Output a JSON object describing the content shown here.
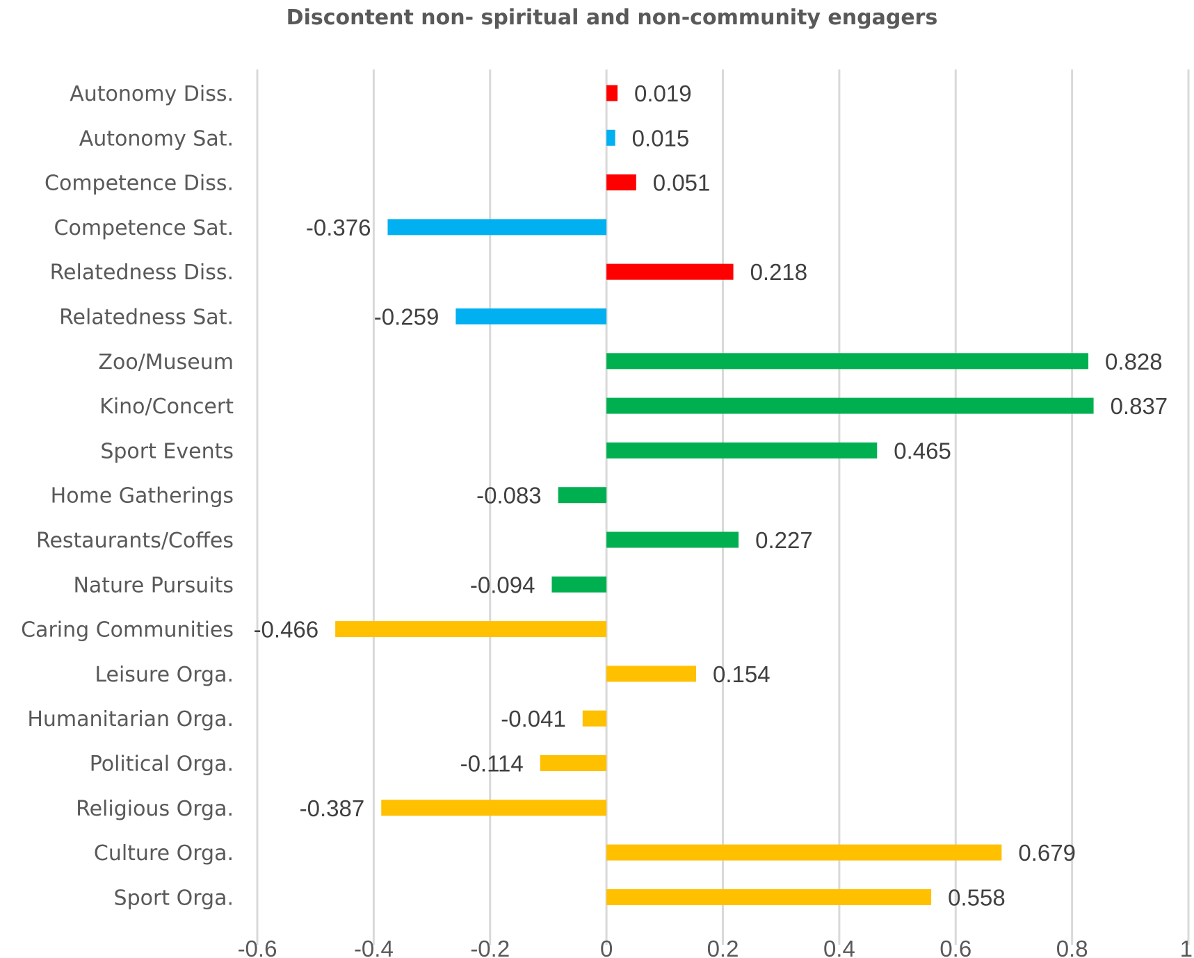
{
  "chart_data": {
    "type": "bar",
    "orientation": "horizontal",
    "title": "Discontent non- spiritual and non-community engagers",
    "xlabel": "",
    "ylabel": "",
    "xlim": [
      -0.6,
      1.0
    ],
    "x_ticks": [
      -0.6,
      -0.4,
      -0.2,
      0,
      0.2,
      0.4,
      0.6,
      0.8,
      1
    ],
    "x_tick_labels": [
      "-0.6",
      "-0.4",
      "-0.2",
      "0",
      "0.2",
      "0.4",
      "0.6",
      "0.8",
      "1"
    ],
    "grid": "vertical",
    "legend": "none",
    "colors": {
      "dissatisfaction": "#ff0000",
      "satisfaction": "#00b0f0",
      "leisure": "#00b050",
      "organization": "#ffc000"
    },
    "categories": [
      "Autonomy Diss.",
      "Autonomy Sat.",
      "Competence Diss.",
      "Competence Sat.",
      "Relatedness Diss.",
      "Relatedness Sat. ",
      "Zoo/Museum",
      "Kino/Concert",
      "Sport Events",
      "Home Gatherings",
      "Restaurants/Coffes",
      "Nature Pursuits",
      "Caring Communities",
      "Leisure Orga.",
      "Humanitarian Orga.",
      "Political Orga.",
      "Religious Orga.",
      "Culture Orga.",
      "Sport Orga."
    ],
    "values": [
      0.019,
      0.015,
      0.051,
      -0.376,
      0.218,
      -0.259,
      0.828,
      0.837,
      0.465,
      -0.083,
      0.227,
      -0.094,
      -0.466,
      0.154,
      -0.041,
      -0.114,
      -0.387,
      0.679,
      0.558
    ],
    "value_labels": [
      "0.019",
      "0.015",
      "0.051",
      "-0.376",
      "0.218",
      "-0.259",
      "0.828",
      "0.837",
      "0.465",
      "-0.083",
      "0.227",
      "-0.094",
      "-0.466",
      "0.154",
      "-0.041",
      "-0.114",
      "-0.387",
      "0.679",
      "0.558"
    ],
    "bar_groups": [
      "dissatisfaction",
      "satisfaction",
      "dissatisfaction",
      "satisfaction",
      "dissatisfaction",
      "satisfaction",
      "leisure",
      "leisure",
      "leisure",
      "leisure",
      "leisure",
      "leisure",
      "organization",
      "organization",
      "organization",
      "organization",
      "organization",
      "organization",
      "organization"
    ]
  }
}
